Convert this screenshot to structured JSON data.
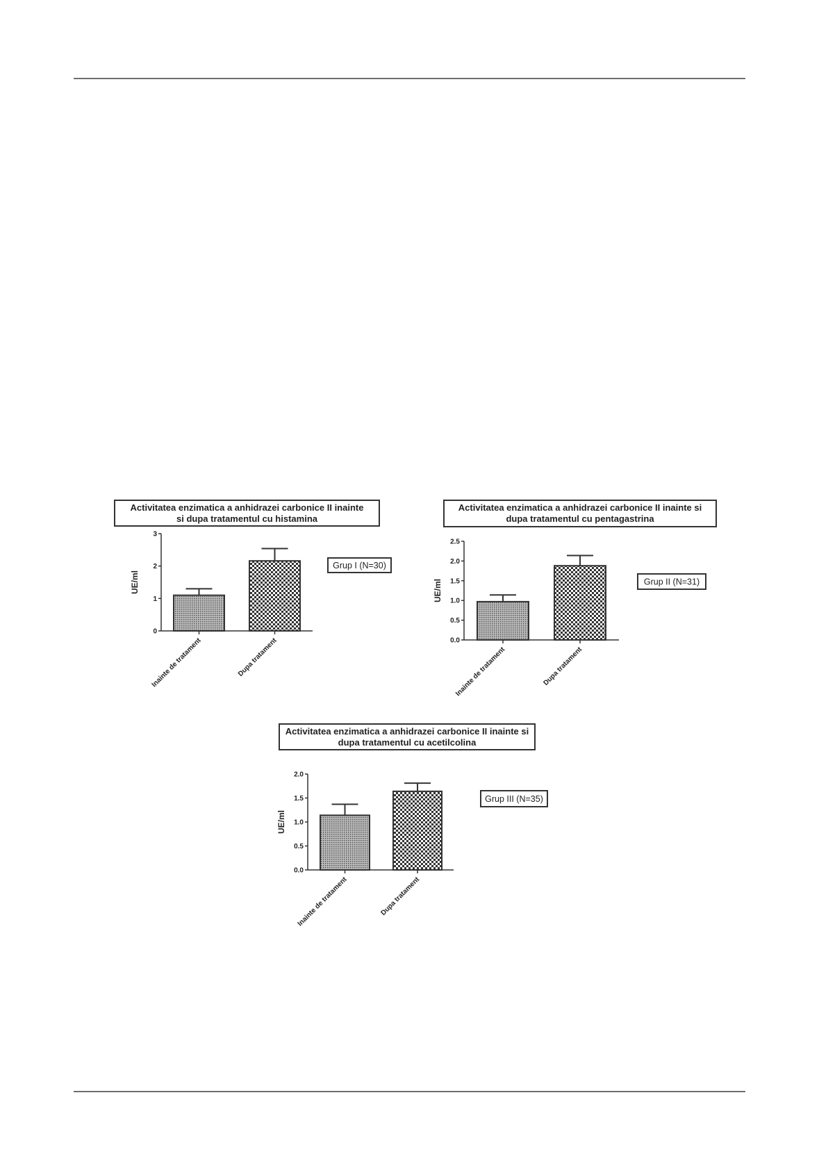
{
  "chart_data": [
    {
      "type": "bar",
      "title": "Activitatea enzimatica a anhidrazei carbonice II inainte si dupa tratamentul cu histamina",
      "title_lines": [
        "Activitatea enzimatica a anhidrazei carbonice II inainte",
        "si dupa tratamentul cu histamina"
      ],
      "categories": [
        "Inainte de tratament",
        "Dupa tratament"
      ],
      "values": [
        1.1,
        2.16
      ],
      "error": [
        0.2,
        0.38
      ],
      "ylabel": "UE/ml",
      "ylim": [
        0,
        3
      ],
      "yticks": [
        "0",
        "1",
        "2",
        "3"
      ],
      "legend": "Grup I (N=30)",
      "grid": false
    },
    {
      "type": "bar",
      "title": "Activitatea enzimatica a anhidrazei carbonice II inainte si dupa tratamentul cu pentagastrina",
      "title_lines": [
        "Activitatea enzimatica a anhidrazei carbonice II inainte si",
        "dupa tratamentul cu pentagastrina"
      ],
      "categories": [
        "Inainte de tratament",
        "Dupa tratament"
      ],
      "values": [
        0.97,
        1.88
      ],
      "error": [
        0.17,
        0.26
      ],
      "ylabel": "UE/ml",
      "ylim": [
        0,
        2.5
      ],
      "yticks": [
        "0.0",
        "0.5",
        "1.0",
        "1.5",
        "2.0",
        "2.5"
      ],
      "legend": "Grup II (N=31)",
      "grid": false
    },
    {
      "type": "bar",
      "title": "Activitatea enzimatica a anhidrazei carbonice II inainte si dupa tratamentul cu acetilcolina",
      "title_lines": [
        "Activitatea enzimatica a anhidrazei carbonice II inainte si",
        "dupa tratamentul cu acetilcolina"
      ],
      "categories": [
        "Inainte de tratament",
        "Dupa tratament"
      ],
      "values": [
        1.14,
        1.64
      ],
      "error": [
        0.23,
        0.17
      ],
      "ylabel": "UE/ml",
      "ylim": [
        0,
        2.0
      ],
      "yticks": [
        "0.0",
        "0.5",
        "1.0",
        "1.5",
        "2.0"
      ],
      "legend": "Grup III (N=35)",
      "grid": false
    }
  ]
}
